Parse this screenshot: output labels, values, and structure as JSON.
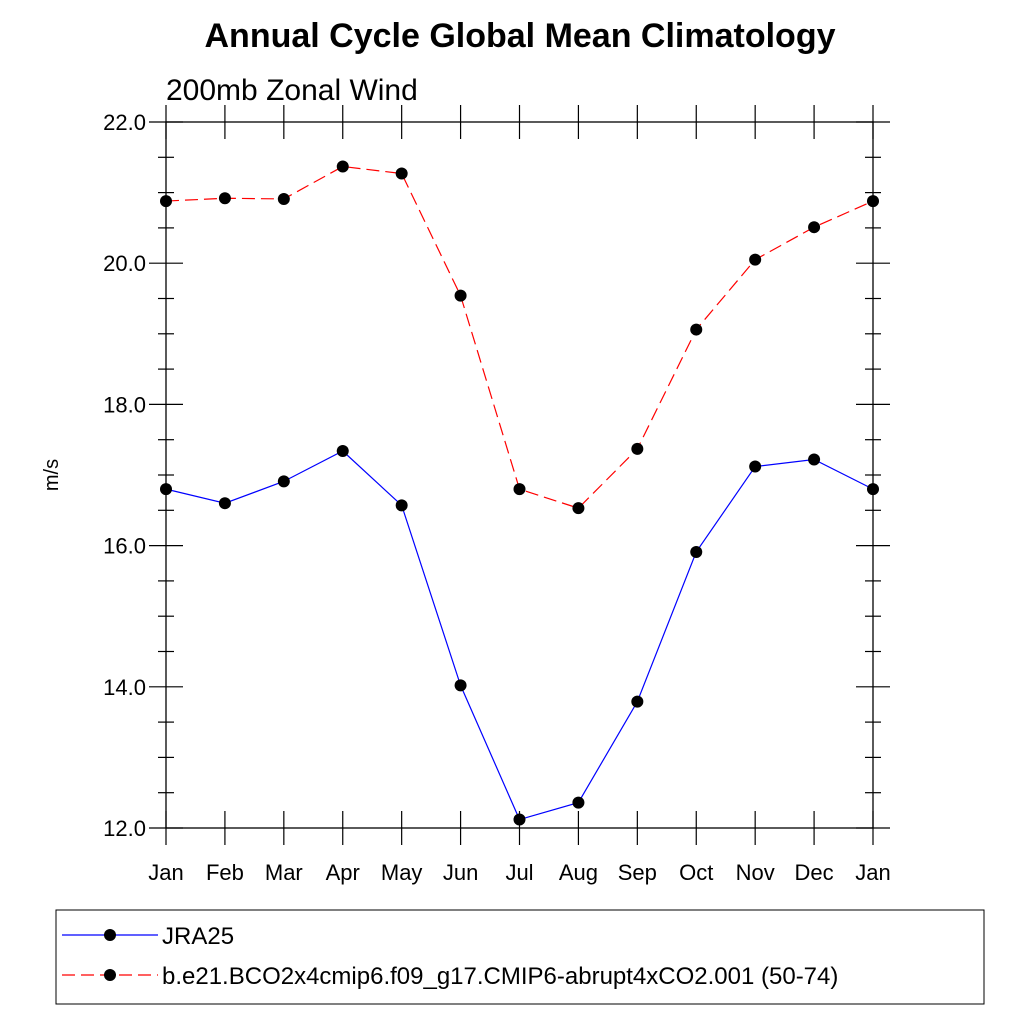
{
  "chart_data": {
    "type": "line",
    "title": "Annual Cycle Global Mean Climatology",
    "subtitle": "200mb Zonal Wind",
    "xlabel": "",
    "ylabel": "m/s",
    "categories": [
      "Jan",
      "Feb",
      "Mar",
      "Apr",
      "May",
      "Jun",
      "Jul",
      "Aug",
      "Sep",
      "Oct",
      "Nov",
      "Dec",
      "Jan"
    ],
    "ylim": [
      12.0,
      22.0
    ],
    "yticks": [
      12.0,
      14.0,
      16.0,
      18.0,
      20.0,
      22.0
    ],
    "ytick_labels": [
      "12.0",
      "14.0",
      "16.0",
      "18.0",
      "20.0",
      "22.0"
    ],
    "series": [
      {
        "name": "JRA25",
        "color": "#0000ff",
        "dash": "solid",
        "marker": "filled-circle",
        "values": [
          16.8,
          16.6,
          16.91,
          17.34,
          16.57,
          14.02,
          12.12,
          12.36,
          13.79,
          15.91,
          17.12,
          17.22,
          16.8
        ]
      },
      {
        "name": "b.e21.BCO2x4cmip6.f09_g17.CMIP6-abrupt4xCO2.001 (50-74)",
        "color": "#ff0000",
        "dash": "dashed",
        "marker": "filled-circle",
        "values": [
          20.88,
          20.92,
          20.91,
          21.37,
          21.27,
          19.54,
          16.8,
          16.53,
          17.37,
          19.06,
          20.05,
          20.51,
          20.88
        ]
      }
    ],
    "grid": false,
    "legend_position": "bottom"
  }
}
